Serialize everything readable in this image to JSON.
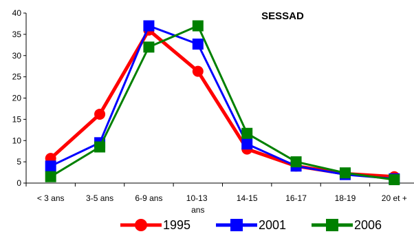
{
  "chart_data": {
    "type": "line",
    "title": "SESSAD",
    "xlabel": "",
    "ylabel": "",
    "categories": [
      "< 3 ans",
      "3-5 ans",
      "6-9 ans",
      "10-13 ans",
      "14-15",
      "16-17",
      "18-19",
      "20 et +"
    ],
    "ylim": [
      0,
      40
    ],
    "yticks": [
      0,
      5,
      10,
      15,
      20,
      25,
      30,
      35,
      40
    ],
    "grid": false,
    "legend_position": "bottom",
    "series": [
      {
        "name": "1995",
        "color": "#ff0000",
        "marker": "circle",
        "values": [
          5.8,
          16.2,
          36.0,
          26.3,
          8.0,
          4.0,
          2.2,
          1.5
        ]
      },
      {
        "name": "2001",
        "color": "#0000ff",
        "marker": "square",
        "values": [
          4.0,
          9.5,
          37.0,
          32.7,
          9.2,
          4.0,
          2.0,
          1.0
        ]
      },
      {
        "name": "2006",
        "color": "#008000",
        "marker": "square",
        "values": [
          1.5,
          8.5,
          32.0,
          37.0,
          11.7,
          5.0,
          2.4,
          0.8
        ]
      }
    ]
  }
}
